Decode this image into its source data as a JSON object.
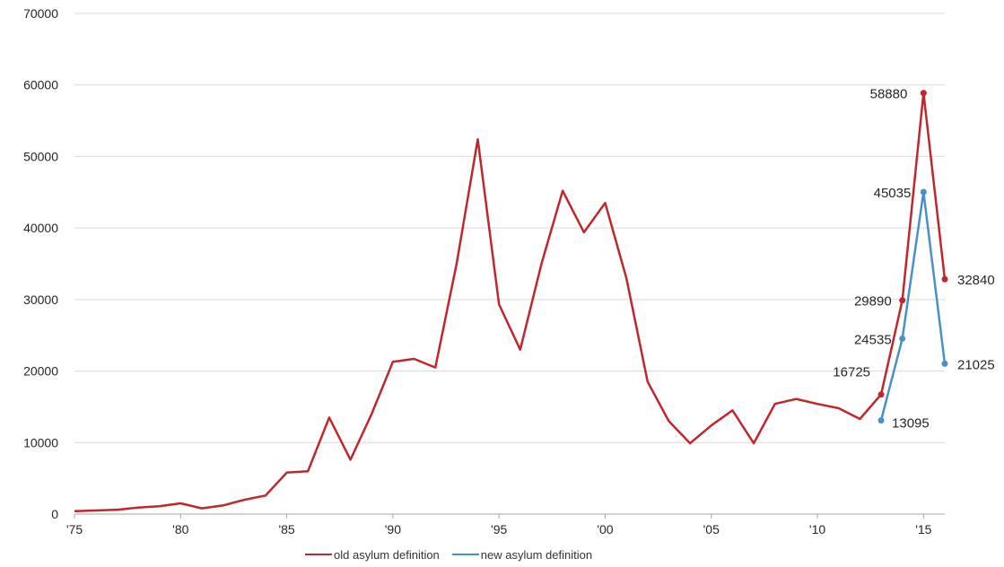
{
  "chart_data": {
    "type": "line",
    "x_tick_labels": [
      "'75",
      "'80",
      "'85",
      "'90",
      "'95",
      "'00",
      "'05",
      "'10",
      "'15"
    ],
    "x_tick_years": [
      1975,
      1980,
      1985,
      1990,
      1995,
      2000,
      2005,
      2010,
      2015
    ],
    "xlim": [
      1975,
      2016
    ],
    "ylim": [
      0,
      70000
    ],
    "y_ticks": [
      0,
      10000,
      20000,
      30000,
      40000,
      50000,
      60000,
      70000
    ],
    "grid": true,
    "legend_position": "bottom",
    "series": [
      {
        "name": "old asylum definition",
        "color": "#c0262c",
        "x": [
          1975,
          1976,
          1977,
          1978,
          1979,
          1980,
          1981,
          1982,
          1983,
          1984,
          1985,
          1986,
          1987,
          1988,
          1989,
          1990,
          1991,
          1992,
          1993,
          1994,
          1995,
          1996,
          1997,
          1998,
          1999,
          2000,
          2001,
          2002,
          2003,
          2004,
          2005,
          2006,
          2007,
          2008,
          2009,
          2010,
          2011,
          2012,
          2013,
          2014,
          2015,
          2016
        ],
        "y": [
          400,
          500,
          600,
          900,
          1100,
          1500,
          800,
          1200,
          2000,
          2600,
          5800,
          6000,
          13500,
          7600,
          14000,
          21300,
          21700,
          20500,
          35000,
          52400,
          29300,
          23000,
          35000,
          45200,
          39400,
          43500,
          33000,
          18500,
          13000,
          9900,
          12400,
          14500,
          9900,
          15400,
          16100,
          15400,
          14800,
          13300,
          16725,
          29890,
          58880,
          32840
        ],
        "labels": [
          {
            "x": 2013,
            "y": 16725,
            "text": "16725"
          },
          {
            "x": 2014,
            "y": 29890,
            "text": "29890"
          },
          {
            "x": 2015,
            "y": 58880,
            "text": "58880"
          },
          {
            "x": 2016,
            "y": 32840,
            "text": "32840"
          }
        ]
      },
      {
        "name": "new asylum definition",
        "color": "#4a90c8",
        "x": [
          2013,
          2014,
          2015,
          2016
        ],
        "y": [
          13095,
          24535,
          45035,
          21025
        ],
        "labels": [
          {
            "x": 2013,
            "y": 13095,
            "text": "13095"
          },
          {
            "x": 2014,
            "y": 24535,
            "text": "24535"
          },
          {
            "x": 2015,
            "y": 45035,
            "text": "45035"
          },
          {
            "x": 2016,
            "y": 21025,
            "text": "21025"
          }
        ]
      }
    ]
  }
}
